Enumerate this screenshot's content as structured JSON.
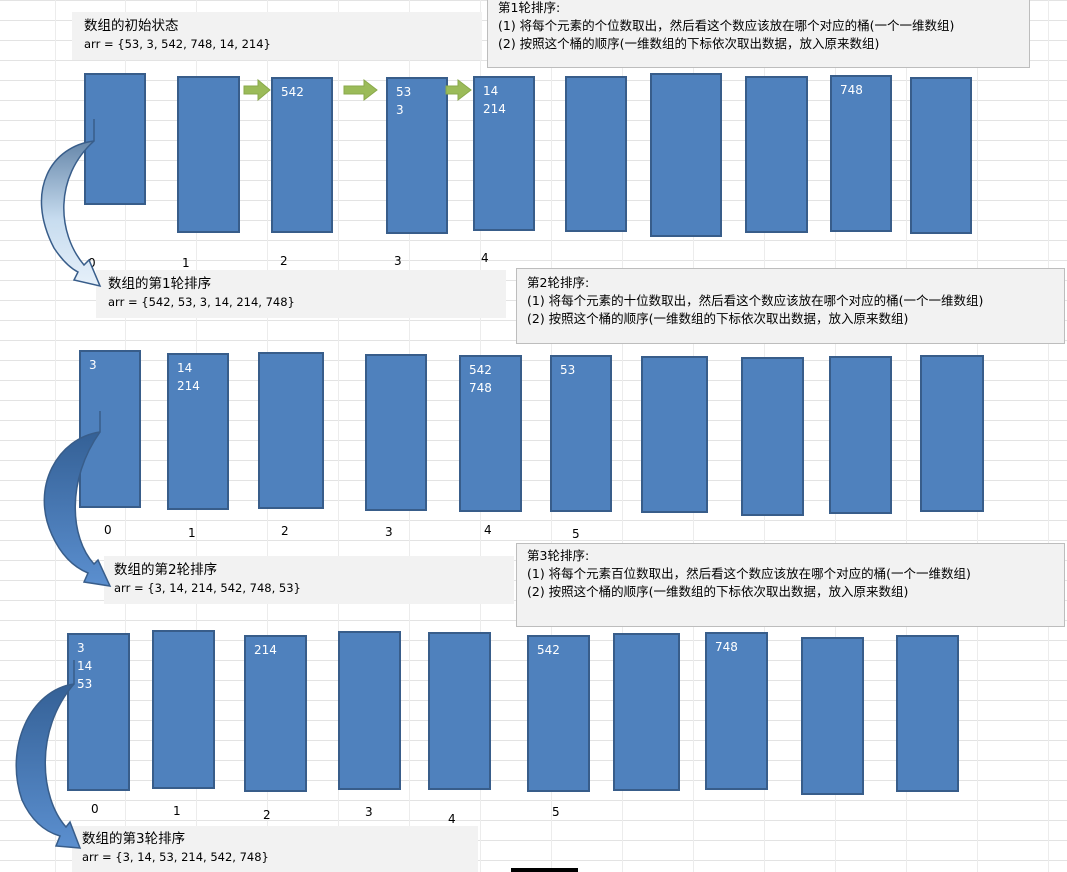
{
  "initial": {
    "title": "数组的初始状态",
    "arr": "arr = {53, 3, 542, 748, 14, 214}"
  },
  "round1": {
    "title": "第1轮排序:",
    "line1": "(1) 将每个元素的个位数取出，然后看这个数应该放在哪个对应的桶(一个一维数组)",
    "line2": "(2) 按照这个桶的顺序(一维数组的下标依次取出数据，放入原来数组)",
    "buckets": [
      [],
      [],
      [
        "542"
      ],
      [
        "53",
        "3"
      ],
      [
        "14",
        "214"
      ],
      [],
      [],
      [],
      [
        "748"
      ],
      []
    ],
    "indices": [
      "0",
      "1",
      "2",
      "3",
      "4"
    ],
    "result_title": "数组的第1轮排序",
    "result_arr": "arr = {542, 53, 3, 14, 214, 748}"
  },
  "round2": {
    "title": "第2轮排序:",
    "line1": "(1) 将每个元素的十位数取出，然后看这个数应该放在哪个对应的桶(一个一维数组)",
    "line2": "(2) 按照这个桶的顺序(一维数组的下标依次取出数据，放入原来数组)",
    "buckets": [
      [
        "3"
      ],
      [
        "14",
        "214"
      ],
      [],
      [],
      [
        "542",
        "748"
      ],
      [
        "53"
      ],
      [],
      [],
      [],
      []
    ],
    "indices": [
      "0",
      "1",
      "2",
      "3",
      "4",
      "5"
    ],
    "result_title": "数组的第2轮排序",
    "result_arr": "arr = {3, 14, 214, 542, 748, 53}"
  },
  "round3": {
    "title": "第3轮排序:",
    "line1": "(1) 将每个元素百位数取出，然后看这个数应该放在哪个对应的桶(一个一维数组)",
    "line2": "(2) 按照这个桶的顺序(一维数组的下标依次取出数据，放入原来数组)",
    "buckets": [
      [
        "3",
        "14",
        "53"
      ],
      [],
      [
        "214"
      ],
      [],
      [],
      [
        "542"
      ],
      [],
      [
        "748"
      ],
      [],
      []
    ],
    "indices": [
      "0",
      "1",
      "2",
      "3",
      "4",
      "5"
    ],
    "result_title": "数组的第3轮排序",
    "result_arr": "arr = {3, 14, 53, 214, 542, 748}"
  },
  "colors": {
    "bucket": "#4f81bd",
    "bucket_border": "#385d8a",
    "green_arrow": "#9bbb59",
    "note_bg": "#f2f2f2"
  }
}
